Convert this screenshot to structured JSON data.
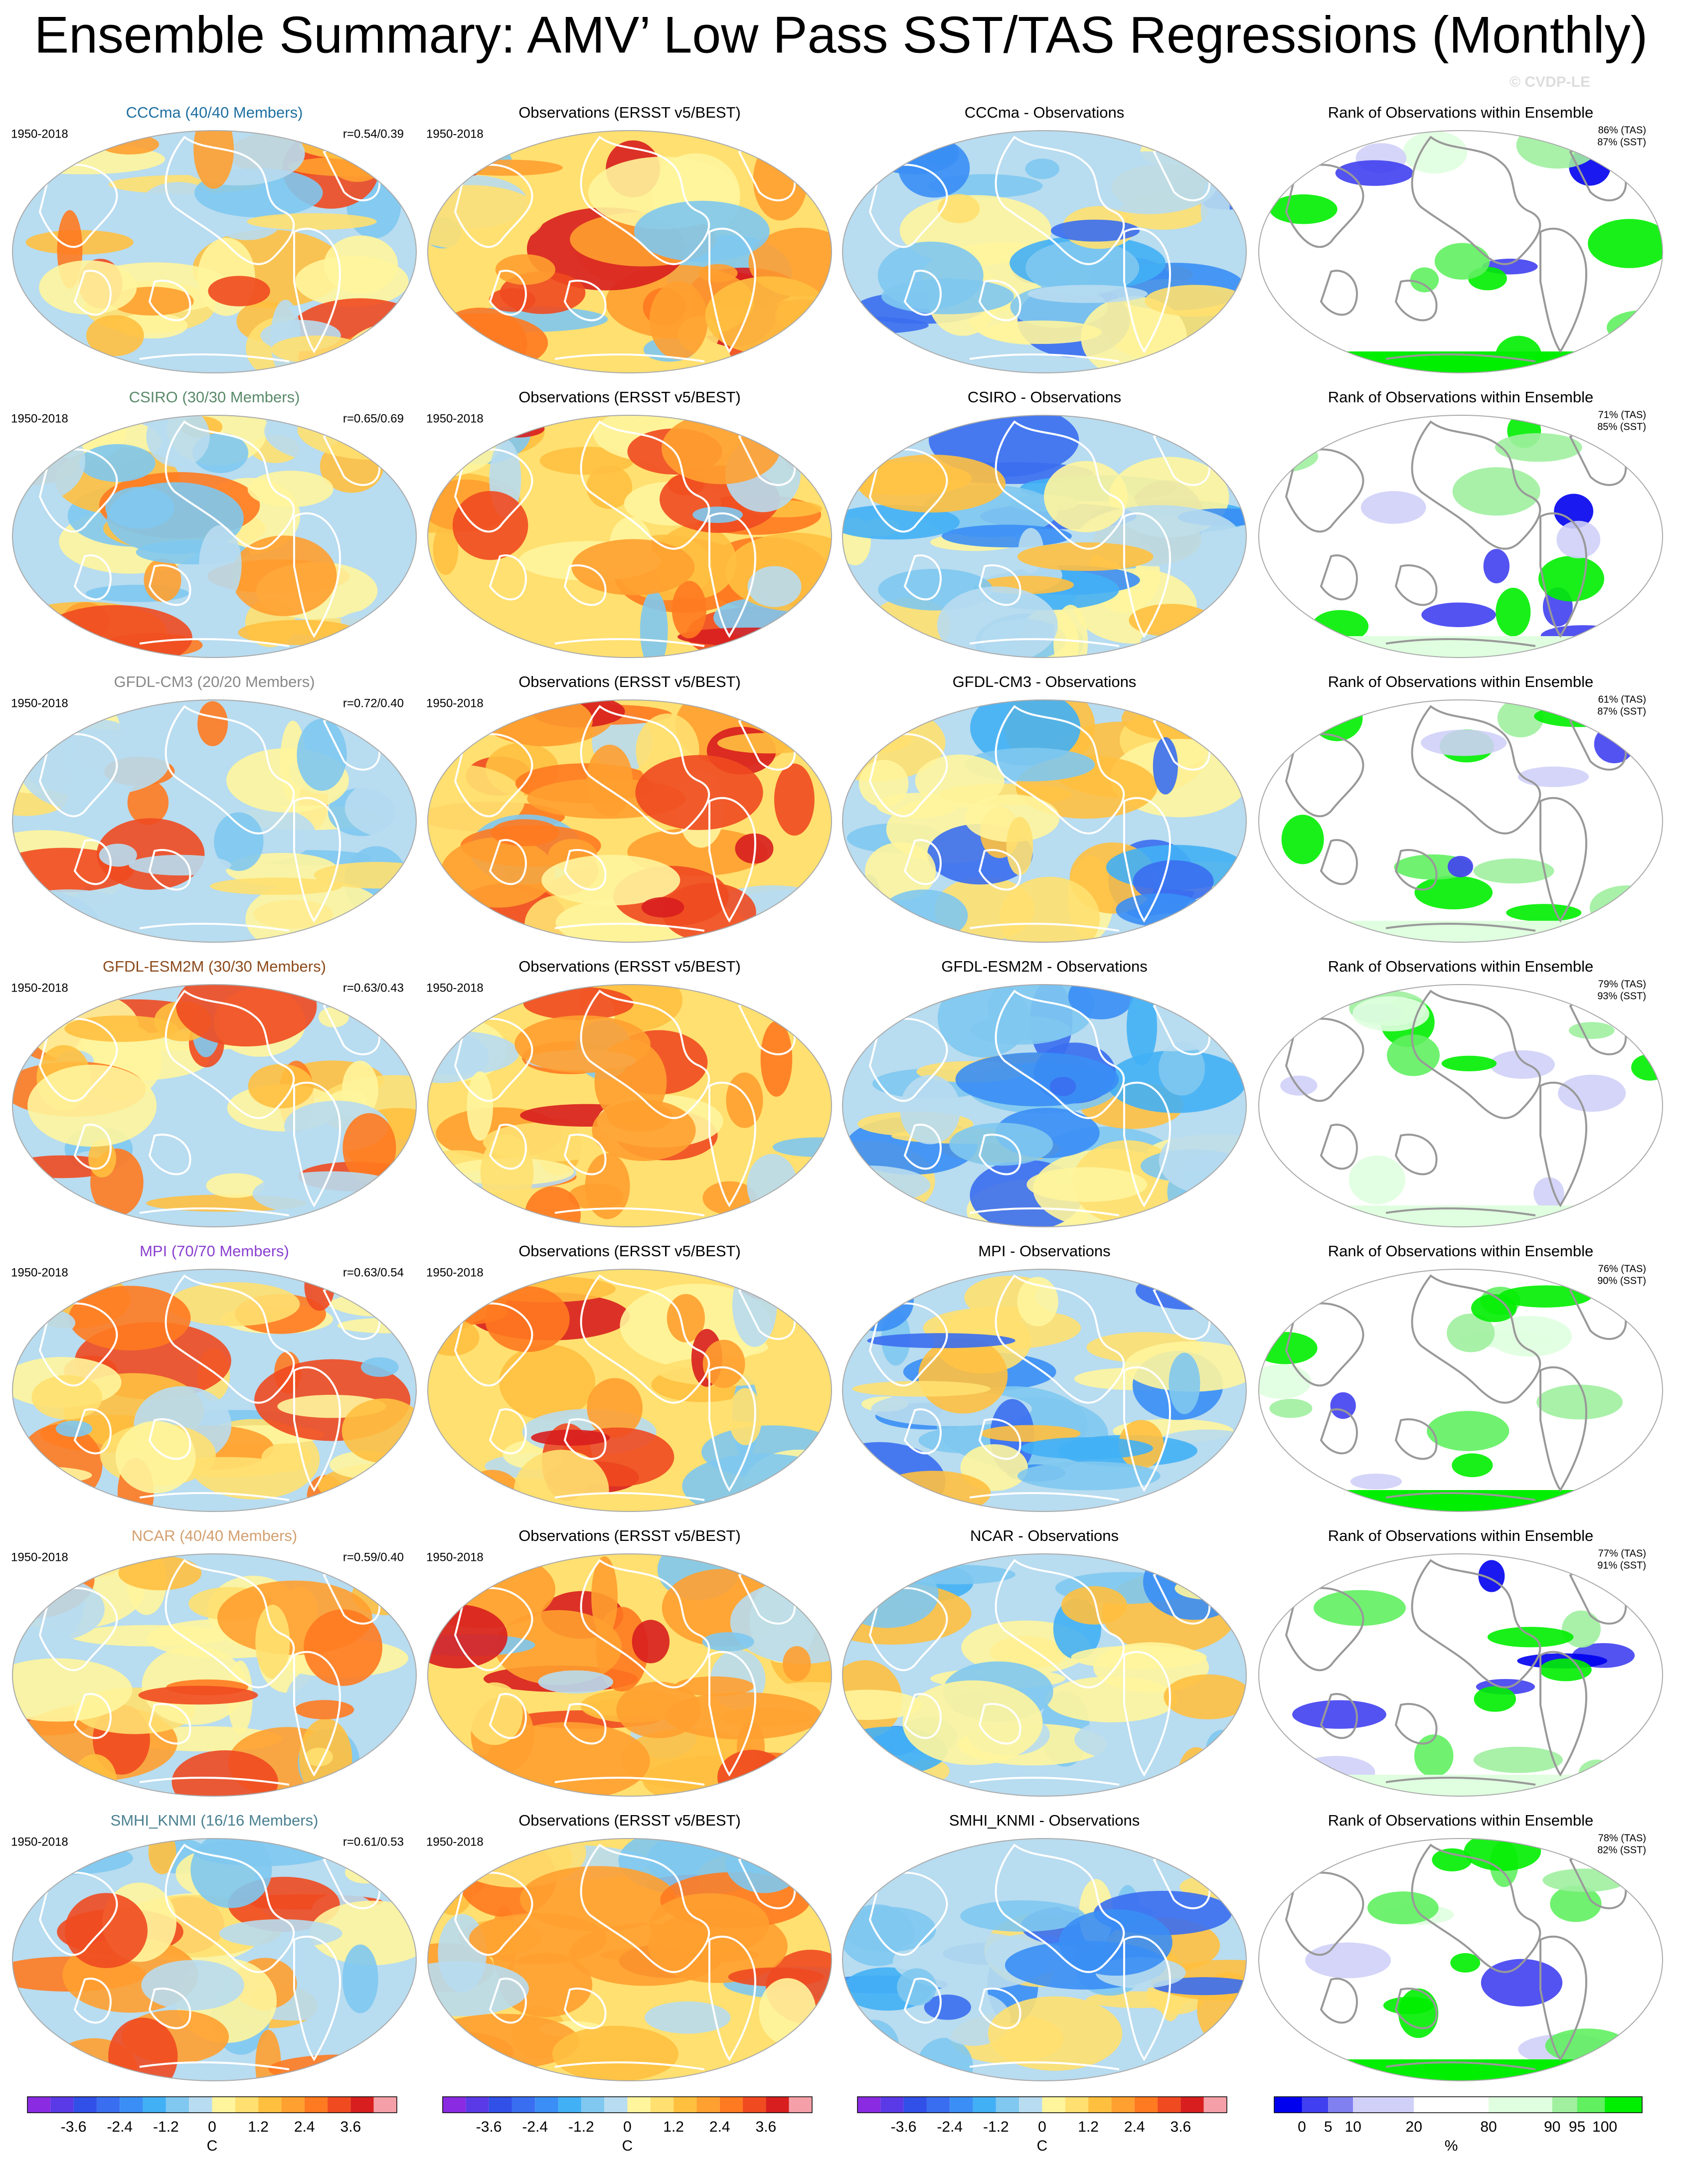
{
  "title": "Ensemble Summary: AMV’ Low Pass SST/TAS Regressions (Monthly)",
  "copyright": "© CVDP-LE",
  "rows": [
    {
      "model_title": "CCCma (40/40 Members)",
      "title_color": "#1f6fa0",
      "model_period": "1950-2018",
      "correlation": "r=0.54/0.39",
      "obs_title": "Observations (ERSST v5/BEST)",
      "obs_period": "1950-2018",
      "diff_title": "CCCma - Observations",
      "rank_title": "Rank of Observations within Ensemble",
      "rank_tas": "86% (TAS)",
      "rank_sst": "87% (SST)"
    },
    {
      "model_title": "CSIRO (30/30 Members)",
      "title_color": "#5a8a6a",
      "model_period": "1950-2018",
      "correlation": "r=0.65/0.69",
      "obs_title": "Observations (ERSST v5/BEST)",
      "obs_period": "1950-2018",
      "diff_title": "CSIRO - Observations",
      "rank_title": "Rank of Observations within Ensemble",
      "rank_tas": "71% (TAS)",
      "rank_sst": "85% (SST)"
    },
    {
      "model_title": "GFDL-CM3 (20/20 Members)",
      "title_color": "#888888",
      "model_period": "1950-2018",
      "correlation": "r=0.72/0.40",
      "obs_title": "Observations (ERSST v5/BEST)",
      "obs_period": "1950-2018",
      "diff_title": "GFDL-CM3 - Observations",
      "rank_title": "Rank of Observations within Ensemble",
      "rank_tas": "61% (TAS)",
      "rank_sst": "87% (SST)"
    },
    {
      "model_title": "GFDL-ESM2M (30/30 Members)",
      "title_color": "#8b4a1b",
      "model_period": "1950-2018",
      "correlation": "r=0.63/0.43",
      "obs_title": "Observations (ERSST v5/BEST)",
      "obs_period": "1950-2018",
      "diff_title": "GFDL-ESM2M - Observations",
      "rank_title": "Rank of Observations within Ensemble",
      "rank_tas": "79% (TAS)",
      "rank_sst": "93% (SST)"
    },
    {
      "model_title": "MPI (70/70 Members)",
      "title_color": "#8a3fd0",
      "model_period": "1950-2018",
      "correlation": "r=0.63/0.54",
      "obs_title": "Observations (ERSST v5/BEST)",
      "obs_period": "1950-2018",
      "diff_title": "MPI - Observations",
      "rank_title": "Rank of Observations within Ensemble",
      "rank_tas": "76% (TAS)",
      "rank_sst": "90% (SST)"
    },
    {
      "model_title": "NCAR (40/40 Members)",
      "title_color": "#d4a070",
      "model_period": "1950-2018",
      "correlation": "r=0.59/0.40",
      "obs_title": "Observations (ERSST v5/BEST)",
      "obs_period": "1950-2018",
      "diff_title": "NCAR - Observations",
      "rank_title": "Rank of Observations within Ensemble",
      "rank_tas": "77% (TAS)",
      "rank_sst": "91% (SST)"
    },
    {
      "model_title": "SMHI_KNMI (16/16 Members)",
      "title_color": "#4a8090",
      "model_period": "1950-2018",
      "correlation": "r=0.61/0.53",
      "obs_title": "Observations (ERSST v5/BEST)",
      "obs_period": "1950-2018",
      "diff_title": "SMHI_KNMI - Observations",
      "rank_title": "Rank of Observations within Ensemble",
      "rank_tas": "78% (TAS)",
      "rank_sst": "82% (SST)"
    }
  ],
  "colorbars": [
    {
      "labels": [
        "-3.6",
        "-2.4",
        "-1.2",
        "0",
        "1.2",
        "2.4",
        "3.6"
      ],
      "unit": "C"
    },
    {
      "labels": [
        "-3.6",
        "-2.4",
        "-1.2",
        "0",
        "1.2",
        "2.4",
        "3.6"
      ],
      "unit": "C"
    },
    {
      "labels": [
        "-3.6",
        "-2.4",
        "-1.2",
        "0",
        "1.2",
        "2.4",
        "3.6"
      ],
      "unit": "C"
    },
    {
      "labels": [
        "0",
        "5",
        "10",
        "20",
        "80",
        "90",
        "95",
        "100"
      ],
      "unit": "%"
    }
  ]
}
